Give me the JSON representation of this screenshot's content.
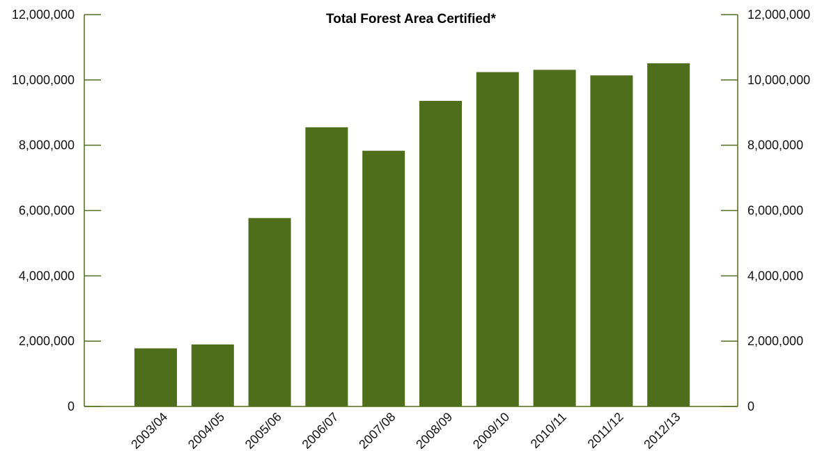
{
  "chart_data": {
    "type": "bar",
    "title": "Total Forest Area Certified*",
    "xlabel": "",
    "ylabel": "",
    "categories": [
      "2003/04",
      "2004/05",
      "2005/06",
      "2006/07",
      "2007/08",
      "2008/09",
      "2009/10",
      "2010/11",
      "2011/12",
      "2012/13"
    ],
    "values": [
      1780000,
      1900000,
      5770000,
      8550000,
      7830000,
      9360000,
      10240000,
      10310000,
      10140000,
      10510000
    ],
    "ylim": [
      0,
      12000000
    ],
    "yticks": [
      0,
      2000000,
      4000000,
      6000000,
      8000000,
      10000000,
      12000000
    ],
    "ytick_labels": [
      "0",
      "2,000,000",
      "4,000,000",
      "6,000,000",
      "8,000,000",
      "10,000,000",
      "12,000,000"
    ],
    "dual_y_axis": true,
    "grid": false,
    "bar_color": "#4e6e1c",
    "axis_color": "#4e6e1c"
  }
}
